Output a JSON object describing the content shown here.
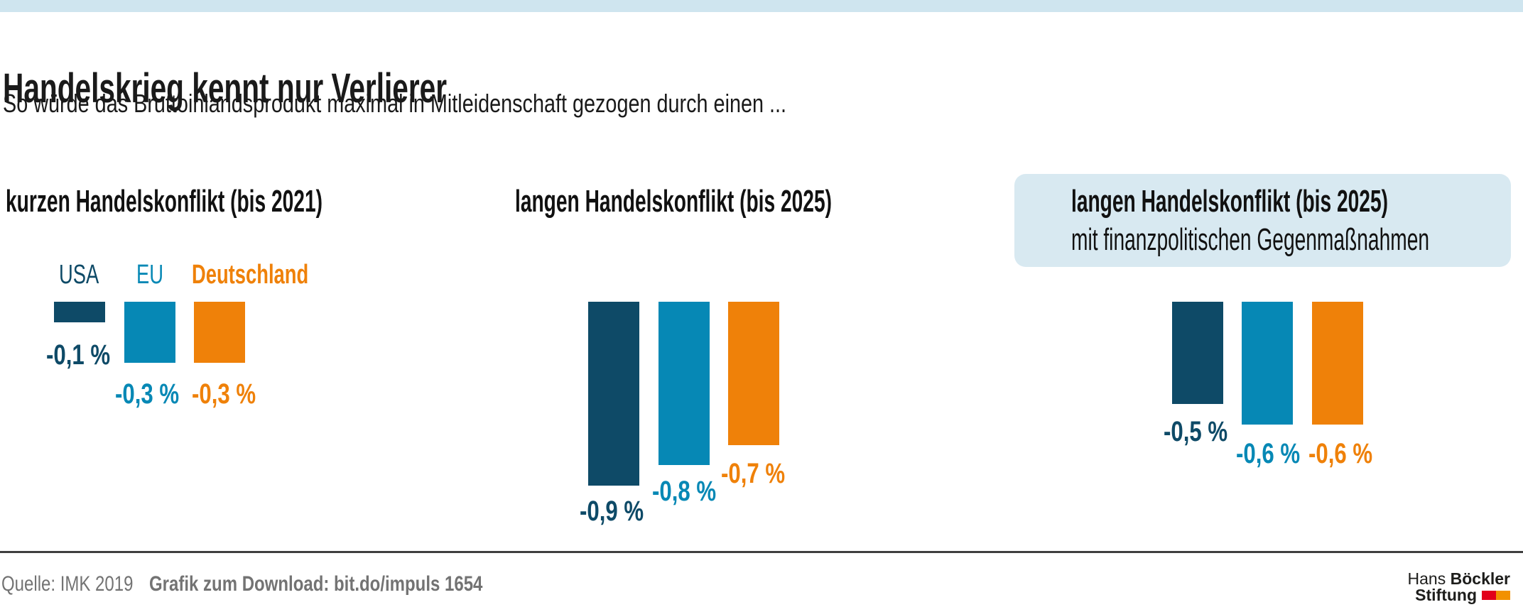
{
  "header": {
    "title": "Handelskrieg kennt nur Verlierer",
    "subtitle": "So würde das Bruttoinlandsprodukt maximal in Mitleidenschaft gezogen durch einen ..."
  },
  "colors": {
    "usa": "#0e4a67",
    "eu": "#0688b5",
    "de": "#ef8109",
    "strip": "#cfe5ef",
    "box": "#d8e9f1",
    "text": "#1a1a1a",
    "rule": "#3f3f3f",
    "footer_text": "#737373",
    "logo_text": "#1d1d1b",
    "logo_red": "#e2001a",
    "logo_orange": "#f29100"
  },
  "chart_data": {
    "type": "bar",
    "title": "Handelskrieg kennt nur Verlierer",
    "subtitle": "So würde das Bruttoinlandsprodukt maximal in Mitleidenschaft gezogen durch einen ...",
    "value_unit": "% (BIP-Effekt)",
    "categories": [
      "USA",
      "EU",
      "Deutschland"
    ],
    "series_colors": [
      "#0e4a67",
      "#0688b5",
      "#ef8109"
    ],
    "baseline": 0,
    "ylim": [
      -1.0,
      0
    ],
    "grid": false,
    "legend_position": "above first group",
    "groups": [
      {
        "label": "kurzen Handelskonflikt (bis 2021)",
        "values": [
          -0.1,
          -0.3,
          -0.3
        ],
        "labels": [
          "-0,1 %",
          "-0,3 %",
          "-0,3 %"
        ]
      },
      {
        "label": "langen Handelskonflikt (bis 2025)",
        "values": [
          -0.9,
          -0.8,
          -0.7
        ],
        "labels": [
          "-0,9 %",
          "-0,8 %",
          "-0,7 %"
        ]
      },
      {
        "label": "langen Handelskonflikt (bis 2025)",
        "sublabel": "mit finanzpolitischen Gegenmaßnahmen",
        "highlighted": true,
        "values": [
          -0.5,
          -0.6,
          -0.6
        ],
        "labels": [
          "-0,5 %",
          "-0,6 %",
          "-0,6 %"
        ]
      }
    ]
  },
  "footer": {
    "source": "Quelle: IMK 2019",
    "download": "Grafik zum Download: bit.do/impuls 1654"
  },
  "logo": {
    "line1_regular": "Hans ",
    "line1_bold": "Böckler",
    "line2_bold": "Stiftung"
  }
}
